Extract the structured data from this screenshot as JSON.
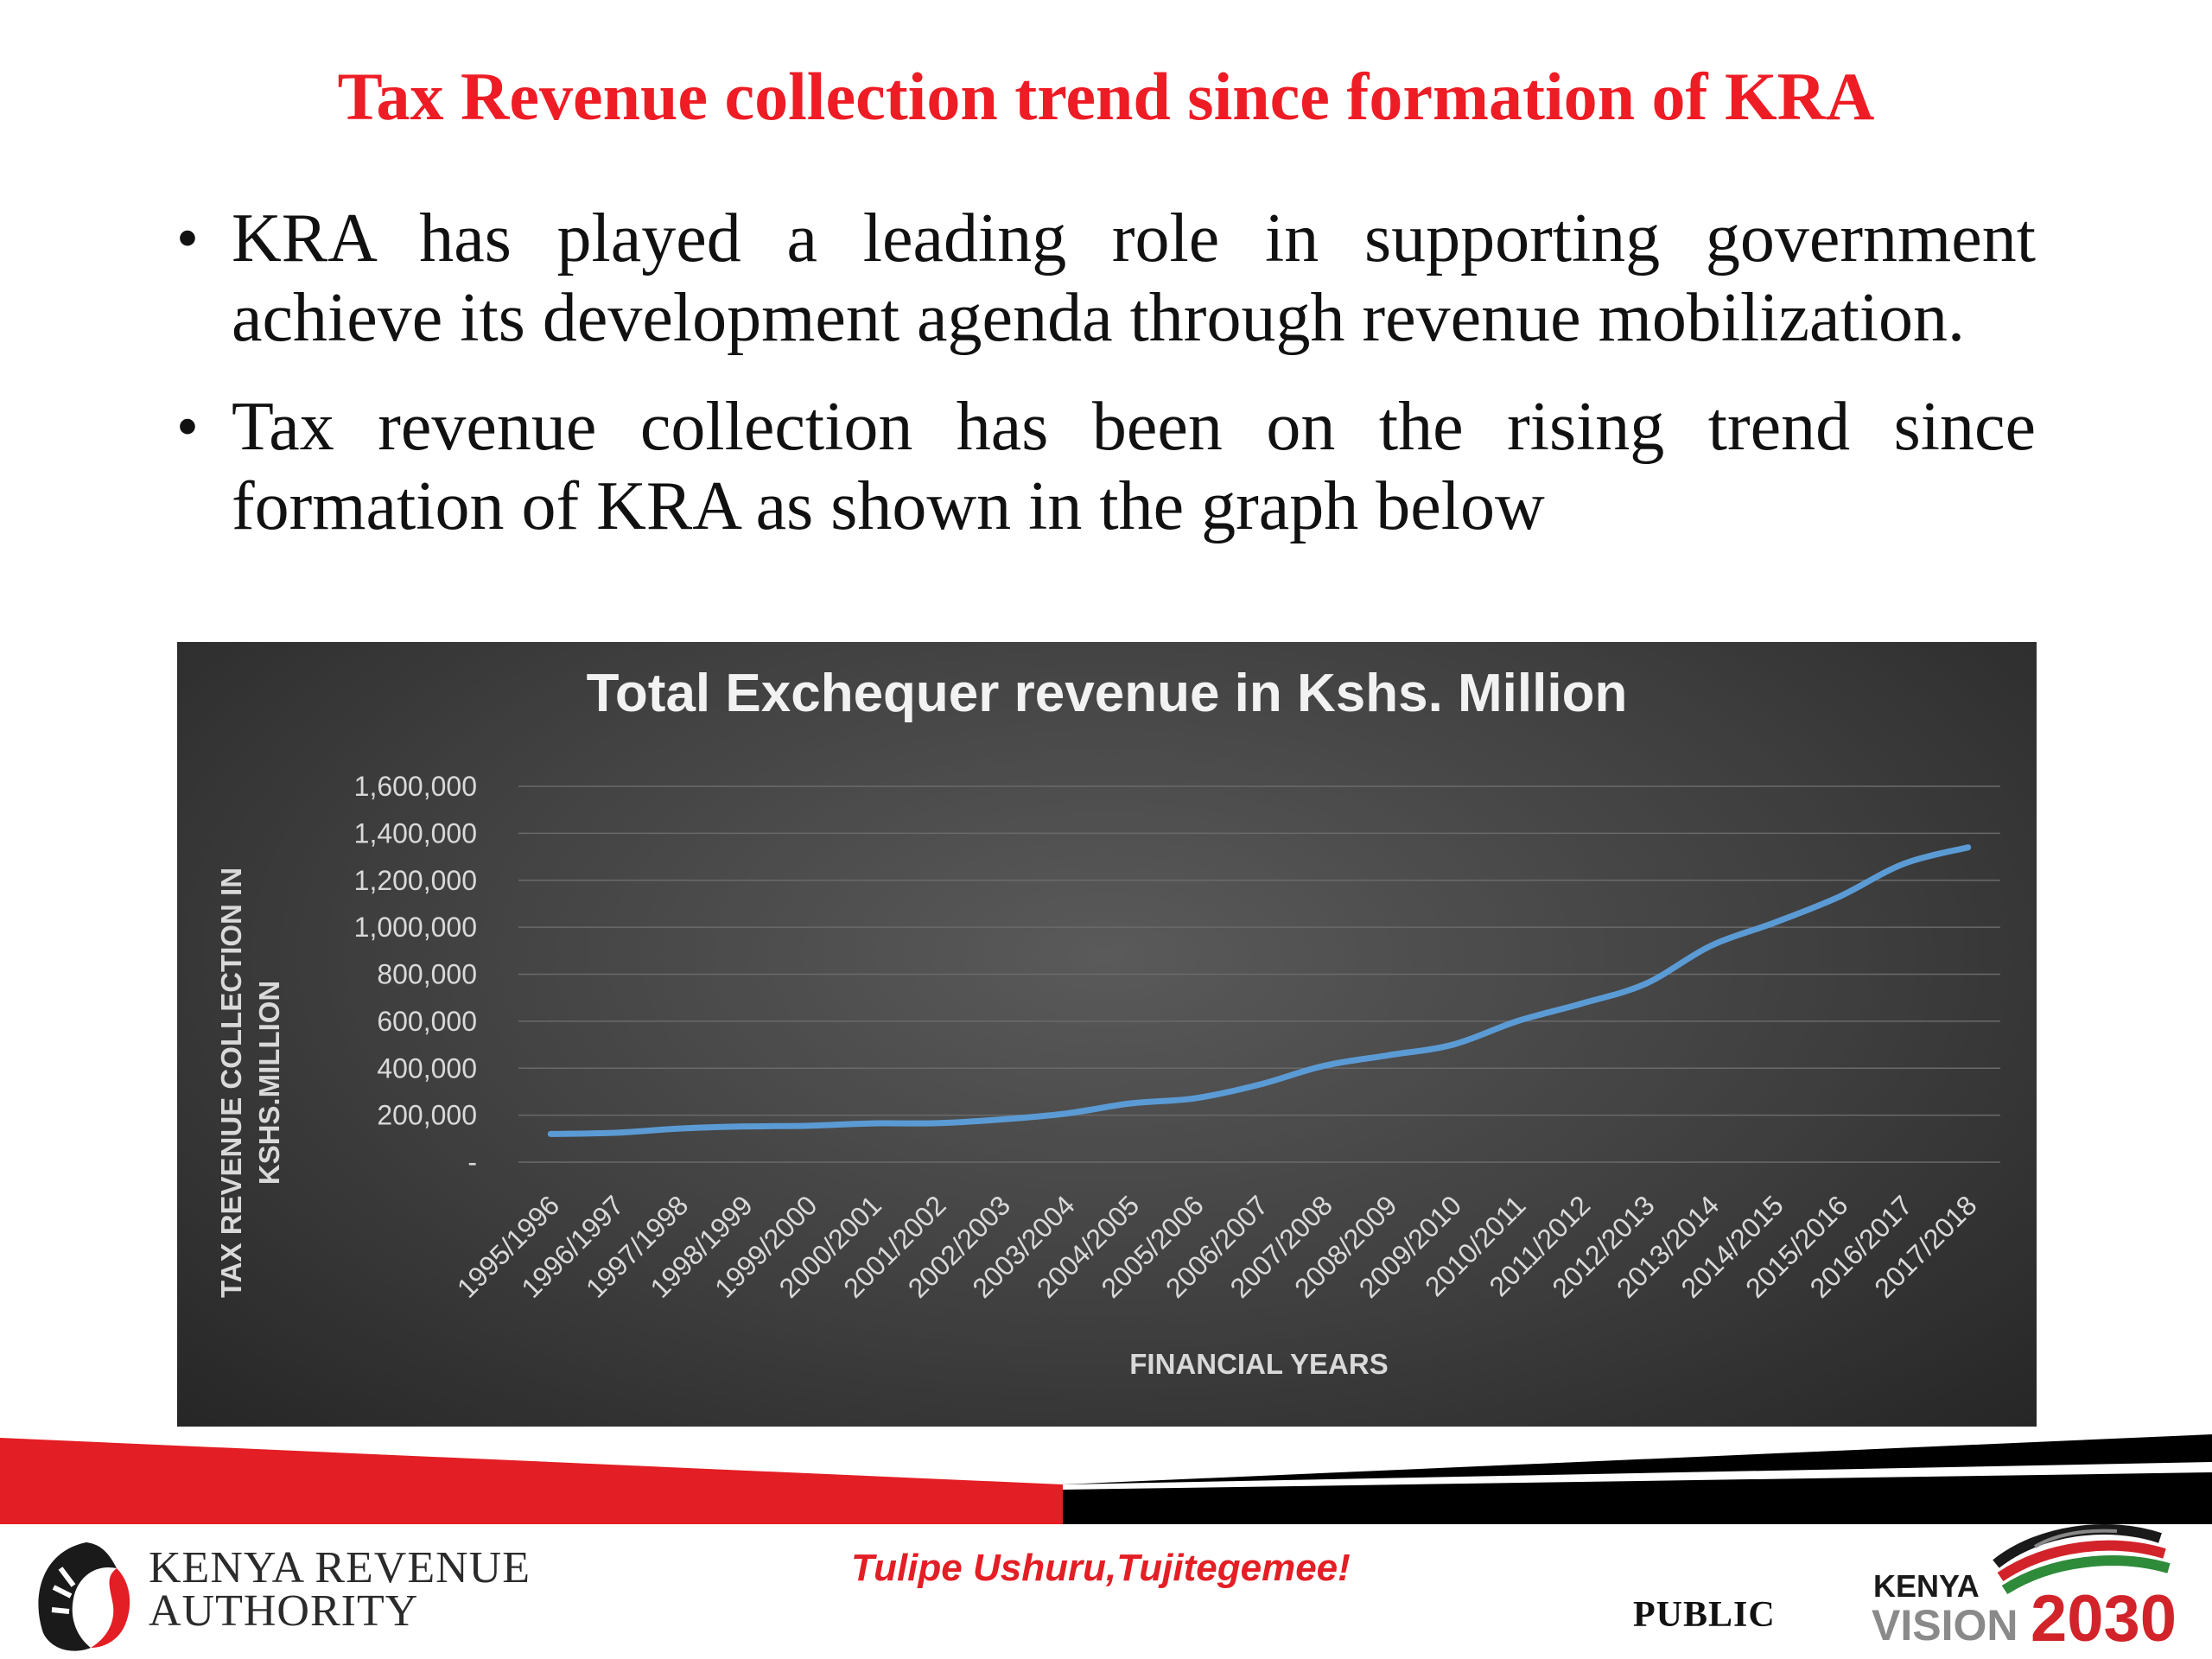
{
  "slide": {
    "title": "Tax Revenue collection trend since formation of KRA",
    "bullets": [
      "KRA has played a leading role in supporting government achieve its development agenda through revenue mobilization.",
      "Tax revenue collection has been on the rising trend since formation of KRA as shown in the graph below"
    ],
    "bullet_symbol": "•"
  },
  "chart_data": {
    "type": "line",
    "title": "Total Exchequer revenue in Kshs. Million",
    "xlabel": "FINANCIAL YEARS",
    "ylabel_lines": [
      "TAX REVENUE COLLECTION IN",
      "KSHS.MILLION"
    ],
    "categories": [
      "1995/1996",
      "1996/1997",
      "1997/1998",
      "1998/1999",
      "1999/2000",
      "2000/2001",
      "2001/2002",
      "2002/2003",
      "2003/2004",
      "2004/2005",
      "2005/2006",
      "2006/2007",
      "2007/2008",
      "2008/2009",
      "2009/2010",
      "2010/2011",
      "2011/2012",
      "2012/2013",
      "2013/2014",
      "2014/2015",
      "2015/2016",
      "2016/2017",
      "2017/2018"
    ],
    "series": [
      {
        "values": [
          120000,
          125000,
          143000,
          152000,
          155000,
          165000,
          166000,
          182000,
          207000,
          250000,
          272000,
          330000,
          410000,
          455000,
          500000,
          600000,
          675000,
          760000,
          920000,
          1020000,
          1130000,
          1270000,
          1340000
        ]
      }
    ],
    "yticks": [
      0,
      200000,
      400000,
      600000,
      800000,
      1000000,
      1200000,
      1400000,
      1600000
    ],
    "ytick_labels": [
      "-",
      "200,000",
      "400,000",
      "600,000",
      "800,000",
      "1,000,000",
      "1,200,000",
      "1,400,000",
      "1,600,000"
    ],
    "ylim": [
      0,
      1600000
    ],
    "grid": true,
    "legend": "none",
    "line_color": "#5b9bd5"
  },
  "footer": {
    "org_line1": "KENYA REVENUE",
    "org_line2": "AUTHORITY",
    "slogan": "Tulipe Ushuru,Tujitegemee!",
    "classification": "PUBLIC",
    "vision_kenya": "KENYA",
    "vision_word": "VISION",
    "vision_year": "2030"
  },
  "colors": {
    "title_red": "#ee1c25",
    "banner_red": "#e31e24",
    "banner_black": "#000000",
    "chart_bg": "#404040"
  }
}
